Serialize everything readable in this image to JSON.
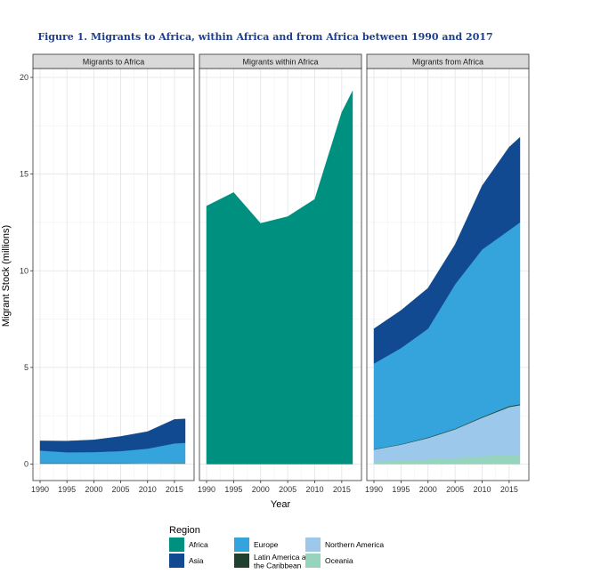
{
  "figure_title": "Figure 1. Migrants to Africa, within Africa and from Africa between 1990 and 2017",
  "chart_data": {
    "type": "area",
    "stacked": true,
    "xlabel": "Year",
    "ylabel": "Migrant Stock (millions)",
    "ylim": [
      0,
      20
    ],
    "yticks": [
      0,
      5,
      10,
      15,
      20
    ],
    "xlim": [
      1990,
      2017
    ],
    "xticks": [
      1990,
      1995,
      2000,
      2005,
      2010,
      2015
    ],
    "grid": true,
    "legend": {
      "title": "Region",
      "position": "bottom",
      "entries": [
        {
          "label": "Africa",
          "color": "#009080"
        },
        {
          "label": "Asia",
          "color": "#124a91"
        },
        {
          "label": "Europe",
          "color": "#35a3dc"
        },
        {
          "label": "Latin America and the Caribbean",
          "label_lines": [
            "Latin America and",
            "the Caribbean"
          ],
          "color": "#1f4230"
        },
        {
          "label": "Northern America",
          "color": "#9cc8ec"
        },
        {
          "label": "Oceania",
          "color": "#96d4be"
        }
      ]
    },
    "years": [
      1990,
      1995,
      2000,
      2005,
      2010,
      2015,
      2017
    ],
    "panels": [
      {
        "title": "Migrants to Africa",
        "series": [
          {
            "name": "Oceania",
            "color": "#96d4be",
            "values": [
              0.01,
              0.01,
              0.01,
              0.01,
              0.01,
              0.01,
              0.01
            ]
          },
          {
            "name": "Northern America",
            "color": "#9cc8ec",
            "values": [
              0.03,
              0.03,
              0.03,
              0.03,
              0.04,
              0.04,
              0.04
            ]
          },
          {
            "name": "Latin America and the Caribbean",
            "color": "#1f4230",
            "values": [
              0.01,
              0.01,
              0.01,
              0.01,
              0.01,
              0.02,
              0.02
            ]
          },
          {
            "name": "Europe",
            "color": "#35a3dc",
            "values": [
              0.65,
              0.56,
              0.57,
              0.62,
              0.74,
              1.0,
              1.03
            ]
          },
          {
            "name": "Asia",
            "color": "#124a91",
            "values": [
              0.5,
              0.58,
              0.63,
              0.76,
              0.88,
              1.24,
              1.24
            ]
          },
          {
            "name": "Africa",
            "color": "#009080",
            "values": [
              0,
              0,
              0,
              0,
              0,
              0,
              0
            ]
          }
        ]
      },
      {
        "title": "Migrants within Africa",
        "series": [
          {
            "name": "Africa",
            "color": "#009080",
            "values": [
              13.35,
              14.05,
              12.45,
              12.8,
              13.7,
              18.2,
              19.3
            ]
          }
        ]
      },
      {
        "title": "Migrants from Africa",
        "series": [
          {
            "name": "Oceania",
            "color": "#96d4be",
            "values": [
              0.13,
              0.18,
              0.24,
              0.32,
              0.42,
              0.48,
              0.5
            ]
          },
          {
            "name": "Northern America",
            "color": "#9cc8ec",
            "values": [
              0.62,
              0.83,
              1.11,
              1.48,
              1.98,
              2.47,
              2.55
            ]
          },
          {
            "name": "Latin America and the Caribbean",
            "color": "#1f4230",
            "values": [
              0.02,
              0.02,
              0.03,
              0.03,
              0.04,
              0.05,
              0.05
            ]
          },
          {
            "name": "Europe",
            "color": "#35a3dc",
            "values": [
              4.43,
              4.97,
              5.62,
              7.47,
              8.66,
              9.1,
              9.4
            ]
          },
          {
            "name": "Asia",
            "color": "#124a91",
            "values": [
              1.8,
              1.95,
              2.1,
              2.05,
              3.3,
              4.3,
              4.4
            ]
          },
          {
            "name": "Africa",
            "color": "#009080",
            "values": [
              0,
              0,
              0,
              0,
              0,
              0,
              0
            ]
          }
        ]
      }
    ]
  }
}
